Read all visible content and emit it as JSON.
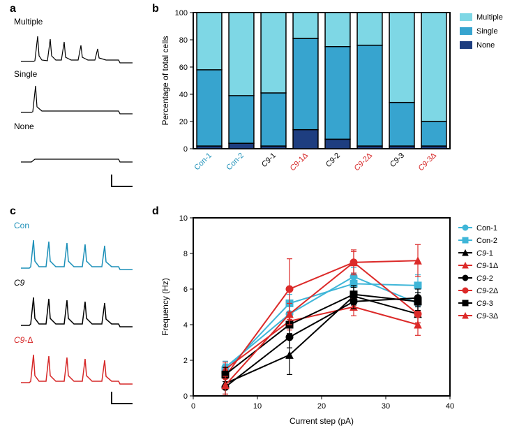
{
  "panel_labels": {
    "a": "a",
    "b": "b",
    "c": "c",
    "d": "d"
  },
  "colors": {
    "blue_light": "#7ed7e5",
    "blue_mid": "#37a4cf",
    "blue_dark": "#1e3e80",
    "black": "#000000",
    "red": "#dc2a29",
    "axis": "#000000",
    "grid": "#e0e0e0",
    "bg": "#ffffff",
    "con_text": "#1b8fb8",
    "c9_text": "#000000",
    "c9d_text": "#d62828"
  },
  "panel_a": {
    "captions": [
      "Multiple",
      "Single",
      "None"
    ],
    "scalebar": true
  },
  "panel_c": {
    "entries": [
      {
        "label": "Con",
        "color": "#1b8fb8"
      },
      {
        "label": "C9",
        "color": "#000000"
      },
      {
        "label": "C9-Δ",
        "color": "#d62828"
      }
    ],
    "scalebar": true
  },
  "bar_chart": {
    "type": "stacked-bar",
    "ylabel": "Percentage of total cells",
    "ylim": [
      0,
      100
    ],
    "ytick_step": 20,
    "bar_width": 0.78,
    "categories": [
      {
        "name": "Con-1",
        "text_color": "#1b8fb8"
      },
      {
        "name": "Con-2",
        "text_color": "#1b8fb8"
      },
      {
        "name": "C9-1",
        "text_color": "#000000",
        "italic_prefix": "C9"
      },
      {
        "name": "C9-1Δ",
        "text_color": "#d62828",
        "italic_prefix": "C9"
      },
      {
        "name": "C9-2",
        "text_color": "#000000",
        "italic_prefix": "C9"
      },
      {
        "name": "C9-2Δ",
        "text_color": "#d62828",
        "italic_prefix": "C9"
      },
      {
        "name": "C9-3",
        "text_color": "#000000",
        "italic_prefix": "C9"
      },
      {
        "name": "C9-3Δ",
        "text_color": "#d62828",
        "italic_prefix": "C9"
      }
    ],
    "stack_order": [
      "None",
      "Single",
      "Multiple"
    ],
    "stack_colors": {
      "None": "#1e3e80",
      "Single": "#37a4cf",
      "Multiple": "#7ed7e5"
    },
    "legend": [
      "Multiple",
      "Single",
      "None"
    ],
    "legend_colors": {
      "Multiple": "#7ed7e5",
      "Single": "#37a4cf",
      "None": "#1e3e80"
    },
    "data": {
      "Con-1": {
        "None": 2,
        "Single": 56,
        "Multiple": 42
      },
      "Con-2": {
        "None": 4,
        "Single": 35,
        "Multiple": 61
      },
      "C9-1": {
        "None": 2,
        "Single": 39,
        "Multiple": 59
      },
      "C9-1Δ": {
        "None": 14,
        "Single": 67,
        "Multiple": 19
      },
      "C9-2": {
        "None": 7,
        "Single": 68,
        "Multiple": 25
      },
      "C9-2Δ": {
        "None": 2,
        "Single": 74,
        "Multiple": 24
      },
      "C9-3": {
        "None": 2,
        "Single": 32,
        "Multiple": 66
      },
      "C9-3Δ": {
        "None": 2,
        "Single": 18,
        "Multiple": 80
      }
    },
    "axis_fontsize": 12,
    "tick_fontsize": 11,
    "legend_fontsize": 11,
    "border_width": 2
  },
  "line_chart": {
    "type": "line",
    "xlabel": "Current step (pA)",
    "ylabel": "Frequency (Hz)",
    "xlim": [
      0,
      40
    ],
    "ylim": [
      0,
      10
    ],
    "xtick_step": 10,
    "ytick_step": 2,
    "x_points": [
      5,
      15,
      25,
      35
    ],
    "axis_fontsize": 12,
    "tick_fontsize": 11,
    "legend_fontsize": 11,
    "line_width": 2,
    "marker_size": 5,
    "error_cap": 4,
    "border_width": 2,
    "series": [
      {
        "name": "Con-1",
        "color": "#3fb6d8",
        "marker": "circle",
        "y": [
          1.6,
          4.6,
          6.7,
          5.2
        ],
        "err": [
          0.35,
          0.5,
          0.5,
          0.6
        ]
      },
      {
        "name": "Con-2",
        "color": "#3fb6d8",
        "marker": "square",
        "y": [
          1.4,
          5.2,
          6.3,
          6.2
        ],
        "err": [
          0.4,
          0.5,
          0.5,
          0.6
        ]
      },
      {
        "name": "C9-1",
        "color": "#000000",
        "marker": "triangle",
        "y": [
          0.7,
          2.3,
          5.6,
          4.6
        ],
        "err": [
          0.6,
          1.1,
          0.5,
          0.5
        ]
      },
      {
        "name": "C9-1Δ",
        "color": "#dc2a29",
        "marker": "triangle",
        "y": [
          1.5,
          4.2,
          5.0,
          4.0
        ],
        "err": [
          0.4,
          0.5,
          0.5,
          0.6
        ]
      },
      {
        "name": "C9-2",
        "color": "#000000",
        "marker": "circle",
        "y": [
          0.5,
          3.3,
          5.3,
          5.5
        ],
        "err": [
          0.5,
          0.6,
          0.4,
          0.5
        ]
      },
      {
        "name": "C9-2Δ",
        "color": "#dc2a29",
        "marker": "circle",
        "y": [
          1.1,
          6.0,
          7.5,
          4.6
        ],
        "err": [
          0.5,
          1.7,
          0.7,
          0.5
        ]
      },
      {
        "name": "C9-3",
        "color": "#000000",
        "marker": "square",
        "y": [
          1.2,
          4.0,
          5.7,
          5.3
        ],
        "err": [
          0.4,
          0.5,
          0.5,
          0.5
        ]
      },
      {
        "name": "C9-3Δ",
        "color": "#dc2a29",
        "marker": "triangle",
        "y": [
          0.6,
          4.6,
          7.5,
          7.6
        ],
        "err": [
          0.5,
          0.6,
          0.6,
          0.9
        ]
      }
    ],
    "legend_italic_prefix": "C9"
  }
}
